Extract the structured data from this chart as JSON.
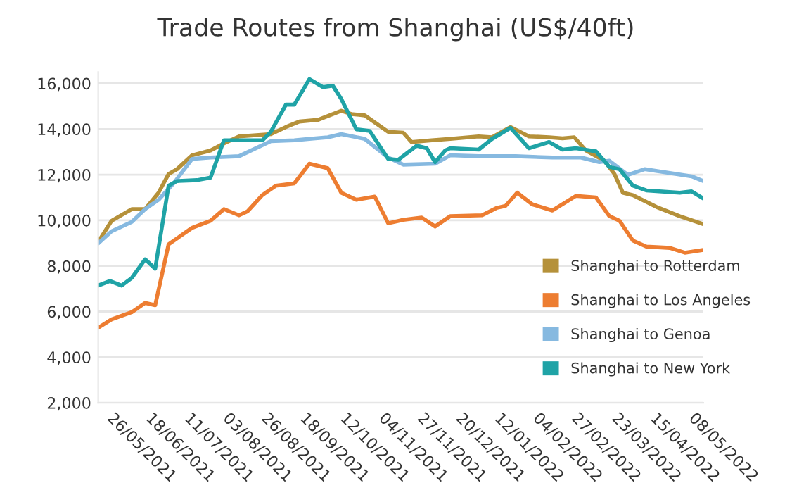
{
  "chart_data": {
    "type": "line",
    "title": "Trade Routes from Shanghai (US$/40ft)",
    "ylim": [
      2000,
      16500
    ],
    "yticks": [
      {
        "value": 2000,
        "label": "2,000"
      },
      {
        "value": 4000,
        "label": "4,000"
      },
      {
        "value": 6000,
        "label": "6,000"
      },
      {
        "value": 8000,
        "label": "8,000"
      },
      {
        "value": 10000,
        "label": "10,000"
      },
      {
        "value": 12000,
        "label": "12,000"
      },
      {
        "value": 14000,
        "label": "14,000"
      },
      {
        "value": 16000,
        "label": "16,000"
      }
    ],
    "xlim": [
      "2021-05-16",
      "2022-05-12"
    ],
    "xticks": [
      {
        "value": "2021-05-26",
        "label": "26/05/2021"
      },
      {
        "value": "2021-06-18",
        "label": "18/06/2021"
      },
      {
        "value": "2021-07-11",
        "label": "11/07/2021"
      },
      {
        "value": "2021-08-03",
        "label": "03/08/2021"
      },
      {
        "value": "2021-08-26",
        "label": "26/08/2021"
      },
      {
        "value": "2021-09-18",
        "label": "18/09/2021"
      },
      {
        "value": "2021-10-12",
        "label": "12/10/2021"
      },
      {
        "value": "2021-11-04",
        "label": "04/11/2021"
      },
      {
        "value": "2021-11-27",
        "label": "27/11/2021"
      },
      {
        "value": "2021-12-20",
        "label": "20/12/2021"
      },
      {
        "value": "2022-01-12",
        "label": "12/01/2022"
      },
      {
        "value": "2022-02-04",
        "label": "04/02/2022"
      },
      {
        "value": "2022-02-27",
        "label": "27/02/2022"
      },
      {
        "value": "2022-03-23",
        "label": "23/03/2022"
      },
      {
        "value": "2022-04-15",
        "label": "15/04/2022"
      },
      {
        "value": "2022-05-08",
        "label": "08/05/2022"
      }
    ],
    "grid": "y",
    "legend": "bottom right",
    "marker": "none",
    "line_style": "solid",
    "series": [
      {
        "name": "Shanghai to Rotterdam",
        "color": "#b5913a",
        "x": [
          "2021-05-16",
          "2021-05-24",
          "2021-06-05",
          "2021-06-13",
          "2021-06-21",
          "2021-06-27",
          "2021-07-02",
          "2021-07-11",
          "2021-07-22",
          "2021-07-30",
          "2021-08-08",
          "2021-08-27",
          "2021-09-05",
          "2021-09-13",
          "2021-09-24",
          "2021-10-08",
          "2021-10-14",
          "2021-10-22",
          "2021-11-05",
          "2021-11-14",
          "2021-11-19",
          "2021-12-01",
          "2021-12-12",
          "2021-12-29",
          "2022-01-06",
          "2022-01-17",
          "2022-01-28",
          "2022-02-09",
          "2022-02-17",
          "2022-02-24",
          "2022-03-03",
          "2022-03-14",
          "2022-03-20",
          "2022-03-25",
          "2022-03-31",
          "2022-04-14",
          "2022-04-28",
          "2022-05-12"
        ],
        "values": [
          9050,
          9980,
          10490,
          10490,
          11210,
          12030,
          12240,
          12850,
          13060,
          13370,
          13680,
          13780,
          14090,
          14330,
          14400,
          14800,
          14660,
          14600,
          13880,
          13840,
          13430,
          13510,
          13570,
          13680,
          13640,
          14090,
          13680,
          13640,
          13590,
          13640,
          13060,
          12610,
          12030,
          11210,
          11100,
          10590,
          10180,
          9830
        ]
      },
      {
        "name": "Shanghai to Los Angeles",
        "color": "#ed7d31",
        "x": [
          "2021-05-16",
          "2021-05-24",
          "2021-06-05",
          "2021-06-13",
          "2021-06-19",
          "2021-06-23",
          "2021-06-27",
          "2021-07-11",
          "2021-07-22",
          "2021-07-30",
          "2021-08-08",
          "2021-08-13",
          "2021-08-22",
          "2021-08-30",
          "2021-09-10",
          "2021-09-19",
          "2021-09-30",
          "2021-10-08",
          "2021-10-17",
          "2021-10-28",
          "2021-11-05",
          "2021-11-14",
          "2021-11-25",
          "2021-12-03",
          "2021-12-12",
          "2021-12-31",
          "2022-01-09",
          "2022-01-14",
          "2022-01-21",
          "2022-01-30",
          "2022-02-11",
          "2022-02-25",
          "2022-03-09",
          "2022-03-17",
          "2022-03-23",
          "2022-03-31",
          "2022-04-08",
          "2022-04-22",
          "2022-05-01",
          "2022-05-12"
        ],
        "values": [
          5290,
          5660,
          5970,
          6380,
          6280,
          7610,
          8950,
          9670,
          9980,
          10490,
          10220,
          10390,
          11110,
          11520,
          11620,
          12480,
          12280,
          11210,
          10900,
          11040,
          9870,
          10020,
          10120,
          9730,
          10180,
          10220,
          10550,
          10630,
          11210,
          10700,
          10430,
          11070,
          11000,
          10180,
          9980,
          9110,
          8850,
          8790,
          8580,
          8700
        ]
      },
      {
        "name": "Shanghai to Genoa",
        "color": "#86b9e0",
        "x": [
          "2021-05-16",
          "2021-05-24",
          "2021-06-05",
          "2021-06-13",
          "2021-06-21",
          "2021-06-30",
          "2021-07-11",
          "2021-07-22",
          "2021-08-08",
          "2021-08-27",
          "2021-09-10",
          "2021-09-19",
          "2021-09-30",
          "2021-10-08",
          "2021-10-22",
          "2021-11-05",
          "2021-11-14",
          "2021-12-03",
          "2021-12-12",
          "2021-12-29",
          "2022-01-20",
          "2022-02-11",
          "2022-02-28",
          "2022-03-11",
          "2022-03-17",
          "2022-03-28",
          "2022-04-07",
          "2022-04-22",
          "2022-05-05",
          "2022-05-12"
        ],
        "values": [
          8990,
          9520,
          9930,
          10490,
          10900,
          11620,
          12690,
          12750,
          12810,
          13470,
          13510,
          13570,
          13640,
          13780,
          13570,
          12750,
          12440,
          12480,
          12850,
          12810,
          12810,
          12750,
          12750,
          12550,
          12610,
          11990,
          12240,
          12070,
          11930,
          11720
        ]
      },
      {
        "name": "Shanghai to New York",
        "color": "#1fa3a6",
        "x": [
          "2021-05-16",
          "2021-05-23",
          "2021-05-30",
          "2021-06-05",
          "2021-06-13",
          "2021-06-19",
          "2021-06-27",
          "2021-07-02",
          "2021-07-14",
          "2021-07-22",
          "2021-07-30",
          "2021-08-11",
          "2021-08-22",
          "2021-08-27",
          "2021-09-05",
          "2021-09-10",
          "2021-09-19",
          "2021-09-27",
          "2021-10-03",
          "2021-10-08",
          "2021-10-17",
          "2021-10-25",
          "2021-11-05",
          "2021-11-11",
          "2021-11-22",
          "2021-11-28",
          "2021-12-03",
          "2021-12-09",
          "2021-12-12",
          "2021-12-29",
          "2022-01-06",
          "2022-01-17",
          "2022-01-28",
          "2022-02-09",
          "2022-02-17",
          "2022-02-25",
          "2022-03-09",
          "2022-03-17",
          "2022-03-23",
          "2022-03-31",
          "2022-04-08",
          "2022-04-28",
          "2022-05-05",
          "2022-05-12"
        ],
        "values": [
          7140,
          7340,
          7140,
          7470,
          8290,
          7880,
          11520,
          11720,
          11760,
          11870,
          13510,
          13510,
          13510,
          13880,
          15070,
          15070,
          16190,
          15840,
          15900,
          15320,
          13990,
          13920,
          12690,
          12650,
          13270,
          13160,
          12550,
          13060,
          13160,
          13100,
          13570,
          14050,
          13160,
          13430,
          13100,
          13160,
          13020,
          12340,
          12240,
          11520,
          11310,
          11210,
          11270,
          10960
        ]
      }
    ]
  }
}
